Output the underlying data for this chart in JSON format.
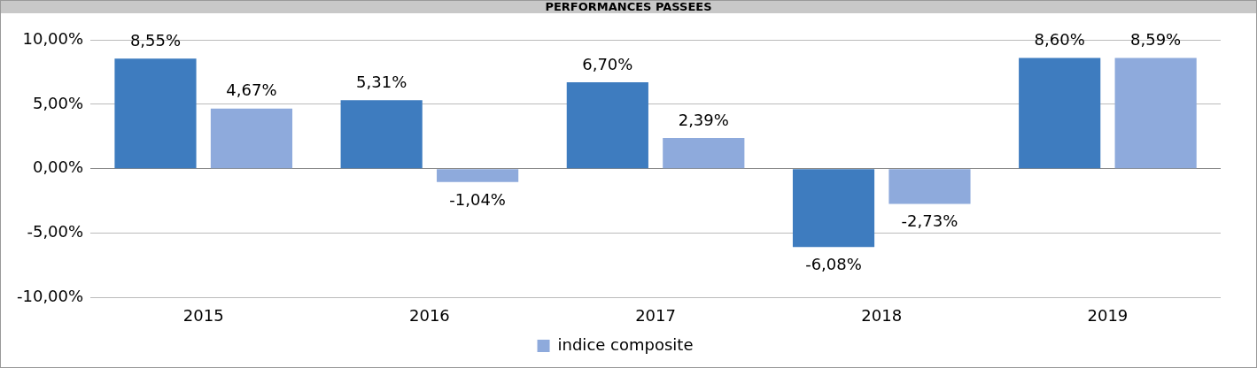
{
  "chart_data": {
    "type": "bar",
    "title": "PERFORMANCES PASSEES",
    "categories": [
      "2015",
      "2016",
      "2017",
      "2018",
      "2019"
    ],
    "series": [
      {
        "color": "#3e7cbf",
        "values": [
          8.55,
          5.31,
          6.7,
          -6.08,
          8.6
        ],
        "value_labels": [
          "8,55%",
          "5,31%",
          "6,70%",
          "-6,08%",
          "8,60%"
        ]
      },
      {
        "name": "indice composite",
        "color": "#8eaadc",
        "values": [
          4.67,
          -1.04,
          2.39,
          -2.73,
          8.59
        ],
        "value_labels": [
          "4,67%",
          "-1,04%",
          "2,39%",
          "-2,73%",
          "8,59%"
        ]
      }
    ],
    "ylim": [
      -10,
      10
    ],
    "yticks": [
      {
        "value": -10,
        "label": "-10,00%"
      },
      {
        "value": -5,
        "label": "-5,00%"
      },
      {
        "value": 0,
        "label": "0,00%"
      },
      {
        "value": 5,
        "label": "5,00%"
      },
      {
        "value": 10,
        "label": "10,00%"
      }
    ],
    "grid": "y",
    "legend": "bottom"
  }
}
